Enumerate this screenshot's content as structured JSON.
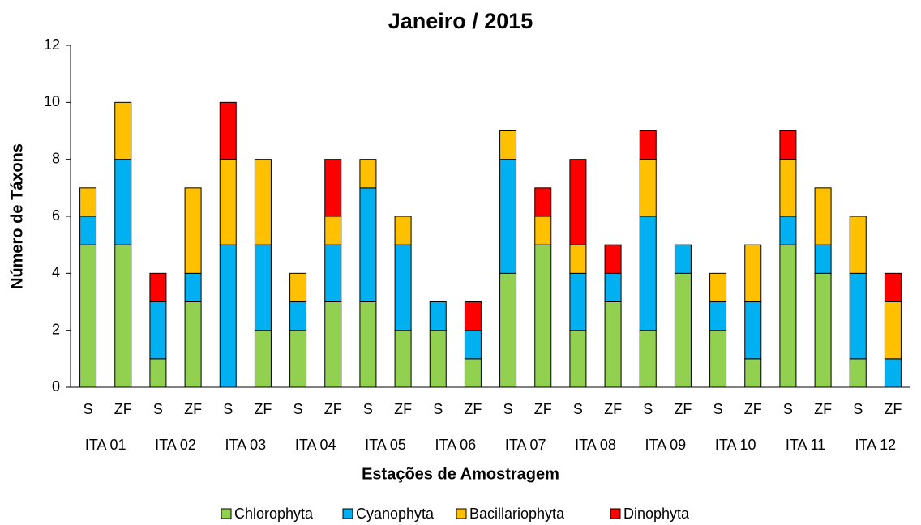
{
  "chart_data": {
    "type": "stacked_bar",
    "title": "Janeiro / 2015",
    "x_label": "Estações de Amostragem",
    "y_label": "Número de Táxons",
    "categories": [
      "S",
      "ZF",
      "S",
      "ZF",
      "S",
      "ZF",
      "S",
      "ZF",
      "S",
      "ZF",
      "S",
      "ZF",
      "S",
      "ZF",
      "S",
      "ZF",
      "S",
      "ZF",
      "S",
      "ZF",
      "S",
      "ZF",
      "S",
      "ZF"
    ],
    "groups": [
      "ITA 01",
      "ITA 02",
      "ITA 03",
      "ITA 04",
      "ITA 05",
      "ITA 06",
      "ITA 07",
      "ITA 08",
      "ITA 09",
      "ITA 10",
      "ITA 11",
      "ITA 12"
    ],
    "series": [
      {
        "name": "Chlorophyta",
        "color": "#92d050",
        "values": [
          5,
          5,
          1,
          3,
          0,
          2,
          2,
          3,
          3,
          2,
          2,
          1,
          4,
          5,
          2,
          3,
          2,
          4,
          2,
          1,
          5,
          4,
          1,
          0
        ]
      },
      {
        "name": "Cyanophyta",
        "color": "#00b0f0",
        "values": [
          1,
          3,
          2,
          1,
          5,
          3,
          1,
          2,
          4,
          3,
          1,
          1,
          4,
          0,
          2,
          1,
          4,
          1,
          1,
          2,
          1,
          1,
          3,
          1
        ]
      },
      {
        "name": "Bacillariophyta",
        "color": "#ffc000",
        "values": [
          1,
          2,
          0,
          3,
          3,
          3,
          1,
          1,
          1,
          1,
          0,
          0,
          1,
          1,
          1,
          0,
          2,
          0,
          1,
          2,
          2,
          2,
          2,
          2
        ]
      },
      {
        "name": "Dinophyta",
        "color": "#ff0000",
        "values": [
          0,
          0,
          1,
          0,
          2,
          0,
          0,
          2,
          0,
          0,
          0,
          1,
          0,
          1,
          3,
          1,
          1,
          0,
          0,
          0,
          1,
          0,
          0,
          1
        ]
      }
    ],
    "ylim": [
      0,
      12
    ],
    "yticks": [
      0,
      2,
      4,
      6,
      8,
      10,
      12
    ],
    "grid": false,
    "legend": "bottom"
  }
}
